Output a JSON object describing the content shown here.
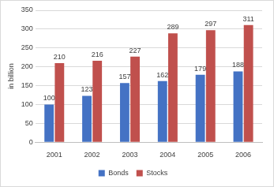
{
  "chart_data": {
    "type": "bar",
    "y_label": "in billion",
    "categories": [
      "2001",
      "2002",
      "2003",
      "2004",
      "2005",
      "2006"
    ],
    "series": [
      {
        "name": "Bonds",
        "color": "#4472c4",
        "values": [
          100,
          123,
          157,
          162,
          179,
          188
        ]
      },
      {
        "name": "Stocks",
        "color": "#c0504d",
        "values": [
          210,
          216,
          227,
          289,
          297,
          311
        ]
      }
    ],
    "ylim": [
      0,
      350
    ],
    "yticks": [
      0,
      50,
      100,
      150,
      200,
      250,
      300,
      350
    ],
    "grid": true,
    "legend": "bottom",
    "data_labels": true
  }
}
